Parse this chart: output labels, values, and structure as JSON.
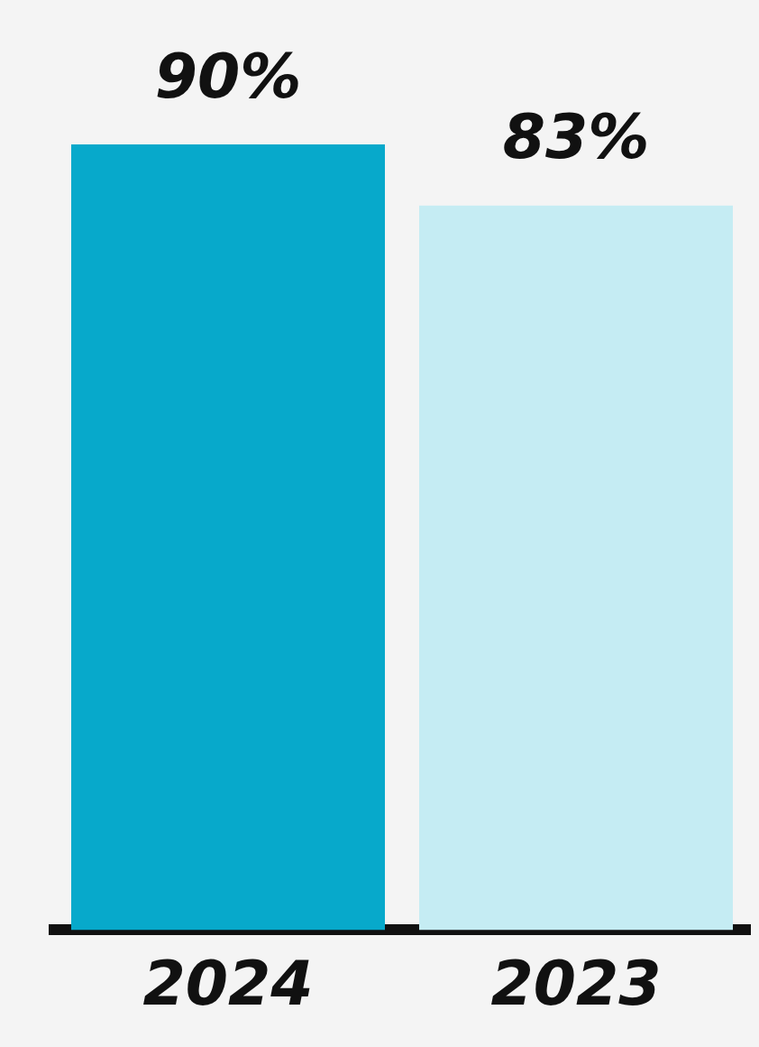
{
  "chart_data": {
    "type": "bar",
    "categories": [
      "2024",
      "2023"
    ],
    "values": [
      90,
      83
    ],
    "colors": [
      "#07a9cb",
      "#c5ecf3"
    ],
    "value_labels": [
      "90%",
      "83%"
    ],
    "grid": false,
    "legend": false
  }
}
